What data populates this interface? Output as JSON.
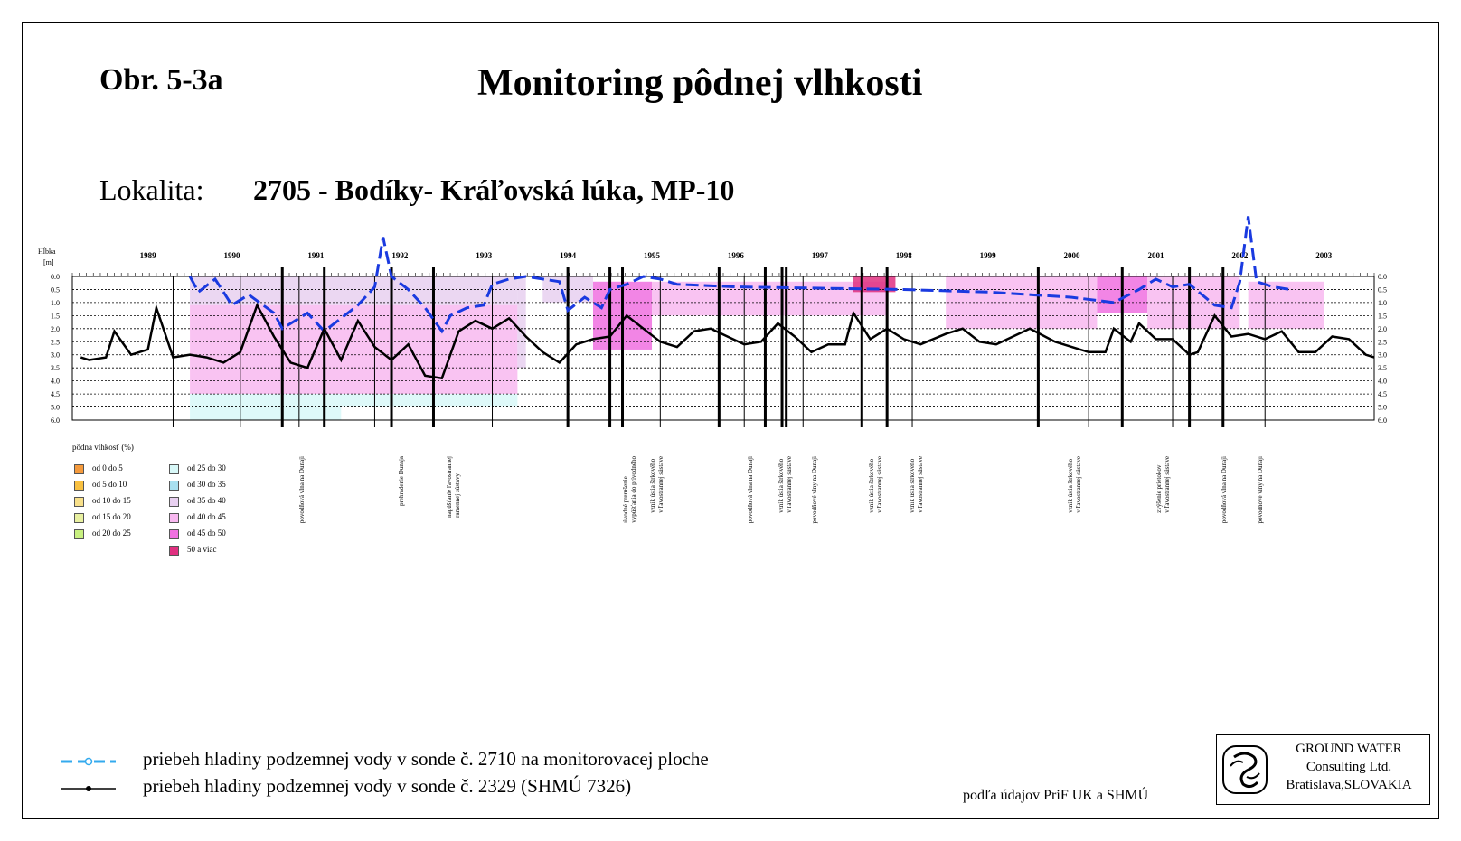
{
  "header": {
    "figure_label": "Obr. 5-3a",
    "title": "Monitoring pôdnej vlhkosti",
    "location_label": "Lokalita:",
    "location_value": "2705 - Bodíky- Kráľovská lúka, MP-10"
  },
  "chart_data": {
    "type": "heatmap",
    "ylabel": "Hĺbka [m]",
    "y_ticks": [
      "0.0",
      "0.5",
      "1.0",
      "1.5",
      "2.0",
      "2.5",
      "3.0",
      "3.5",
      "4.0",
      "4.5",
      "5.0",
      "6.0"
    ],
    "x_ticks": [
      "1989",
      "1990",
      "1991",
      "1992",
      "1993",
      "1994",
      "1995",
      "1996",
      "1997",
      "1998",
      "1999",
      "2000",
      "2001",
      "2002",
      "2003"
    ],
    "ylim_m": [
      0,
      6.0
    ],
    "xlim_year": [
      1988.6,
      2004.1
    ],
    "grid": true,
    "moisture_colors": {
      "0-5": "#f59a3c",
      "5-10": "#f8c040",
      "10-15": "#f8e08a",
      "15-20": "#e8f0a0",
      "20-25": "#c8f080",
      "25-30": "#d8f8f8",
      "30-35": "#a8e0f0",
      "35-40": "#e8d0f0",
      "40-45": "#f8b8f0",
      "45-50": "#f070e0",
      "50+": "#e03080"
    },
    "moisture_bands": [
      {
        "x0": 1990.0,
        "x1": 1993.9,
        "d0": 0.0,
        "d1": 1.1,
        "class": "35-40"
      },
      {
        "x0": 1990.0,
        "x1": 1993.9,
        "d0": 1.1,
        "d1": 4.5,
        "class": "40-45"
      },
      {
        "x0": 1990.0,
        "x1": 1993.9,
        "d0": 4.5,
        "d1": 5.0,
        "class": "25-30"
      },
      {
        "x0": 1990.0,
        "x1": 1991.8,
        "d0": 5.0,
        "d1": 6.0,
        "class": "25-30"
      },
      {
        "x0": 1993.9,
        "x1": 1994.0,
        "d0": 0.0,
        "d1": 3.5,
        "class": "35-40"
      },
      {
        "x0": 1994.2,
        "x1": 1994.8,
        "d0": 0.0,
        "d1": 1.0,
        "class": "35-40"
      },
      {
        "x0": 1994.8,
        "x1": 1995.5,
        "d0": 0.2,
        "d1": 2.8,
        "class": "45-50"
      },
      {
        "x0": 1995.5,
        "x1": 1998.3,
        "d0": 0.2,
        "d1": 1.5,
        "class": "40-45"
      },
      {
        "x0": 1997.9,
        "x1": 1998.4,
        "d0": 0.0,
        "d1": 0.6,
        "class": "50+"
      },
      {
        "x0": 1999.0,
        "x1": 2000.8,
        "d0": 0.0,
        "d1": 2.0,
        "class": "40-45"
      },
      {
        "x0": 2000.8,
        "x1": 2001.4,
        "d0": 0.0,
        "d1": 1.4,
        "class": "45-50"
      },
      {
        "x0": 2001.4,
        "x1": 2002.5,
        "d0": 0.0,
        "d1": 2.0,
        "class": "40-45"
      },
      {
        "x0": 2002.6,
        "x1": 2003.5,
        "d0": 0.2,
        "d1": 2.0,
        "class": "40-45"
      }
    ],
    "series": [
      {
        "name": "priebeh hladiny podzemnej vody v sonde č. 2710 na monitorovacej ploche",
        "color": "#1a3ae0",
        "dash": true,
        "points": [
          [
            1990.0,
            0.0
          ],
          [
            1990.1,
            0.6
          ],
          [
            1990.3,
            0.1
          ],
          [
            1990.5,
            1.1
          ],
          [
            1990.7,
            0.7
          ],
          [
            1991.0,
            1.4
          ],
          [
            1991.1,
            2.0
          ],
          [
            1991.4,
            1.4
          ],
          [
            1991.6,
            2.1
          ],
          [
            1991.8,
            1.6
          ],
          [
            1992.0,
            1.1
          ],
          [
            1992.2,
            0.4
          ],
          [
            1992.3,
            -1.5
          ],
          [
            1992.4,
            0.0
          ],
          [
            1992.6,
            0.5
          ],
          [
            1992.8,
            1.2
          ],
          [
            1993.0,
            2.1
          ],
          [
            1993.1,
            1.5
          ],
          [
            1993.3,
            1.2
          ],
          [
            1993.5,
            1.1
          ],
          [
            1993.6,
            0.3
          ],
          [
            1993.8,
            0.1
          ],
          [
            1994.0,
            0.0
          ],
          [
            1994.2,
            0.1
          ],
          [
            1994.4,
            0.2
          ],
          [
            1994.5,
            1.3
          ],
          [
            1994.7,
            0.8
          ],
          [
            1994.9,
            1.2
          ],
          [
            1995.0,
            0.5
          ],
          [
            1995.2,
            0.3
          ],
          [
            1995.4,
            0.0
          ],
          [
            1995.6,
            0.1
          ],
          [
            1995.8,
            0.3
          ],
          [
            1996.5,
            0.4
          ],
          [
            1997.5,
            0.45
          ],
          [
            1998.5,
            0.5
          ],
          [
            1999.5,
            0.6
          ],
          [
            2000.5,
            0.8
          ],
          [
            2001.0,
            1.0
          ],
          [
            2001.3,
            0.5
          ],
          [
            2001.5,
            0.1
          ],
          [
            2001.7,
            0.4
          ],
          [
            2001.9,
            0.3
          ],
          [
            2002.2,
            1.1
          ],
          [
            2002.4,
            1.2
          ],
          [
            2002.5,
            0.2
          ],
          [
            2002.6,
            -2.3
          ],
          [
            2002.7,
            0.2
          ],
          [
            2002.9,
            0.4
          ],
          [
            2003.1,
            0.5
          ]
        ]
      },
      {
        "name": "priebeh hladiny podzemnej vody v sonde č. 2329 (SHMÚ 7326)",
        "color": "#000000",
        "dash": false,
        "points": [
          [
            1988.7,
            3.1
          ],
          [
            1988.8,
            3.2
          ],
          [
            1989.0,
            3.1
          ],
          [
            1989.1,
            2.1
          ],
          [
            1989.3,
            3.0
          ],
          [
            1989.5,
            2.8
          ],
          [
            1989.6,
            1.2
          ],
          [
            1989.8,
            3.1
          ],
          [
            1990.0,
            3.0
          ],
          [
            1990.2,
            3.1
          ],
          [
            1990.4,
            3.3
          ],
          [
            1990.6,
            2.9
          ],
          [
            1990.8,
            1.1
          ],
          [
            1991.0,
            2.3
          ],
          [
            1991.2,
            3.3
          ],
          [
            1991.4,
            3.5
          ],
          [
            1991.6,
            2.0
          ],
          [
            1991.8,
            3.2
          ],
          [
            1992.0,
            1.7
          ],
          [
            1992.2,
            2.7
          ],
          [
            1992.4,
            3.2
          ],
          [
            1992.6,
            2.6
          ],
          [
            1992.8,
            3.8
          ],
          [
            1993.0,
            3.9
          ],
          [
            1993.2,
            2.1
          ],
          [
            1993.4,
            1.7
          ],
          [
            1993.6,
            2.0
          ],
          [
            1993.8,
            1.6
          ],
          [
            1994.0,
            2.3
          ],
          [
            1994.2,
            2.9
          ],
          [
            1994.4,
            3.3
          ],
          [
            1994.6,
            2.6
          ],
          [
            1994.8,
            2.4
          ],
          [
            1995.0,
            2.3
          ],
          [
            1995.2,
            1.5
          ],
          [
            1995.4,
            2.0
          ],
          [
            1995.6,
            2.5
          ],
          [
            1995.8,
            2.7
          ],
          [
            1996.0,
            2.1
          ],
          [
            1996.2,
            2.0
          ],
          [
            1996.4,
            2.3
          ],
          [
            1996.6,
            2.6
          ],
          [
            1996.8,
            2.5
          ],
          [
            1997.0,
            1.8
          ],
          [
            1997.2,
            2.3
          ],
          [
            1997.4,
            2.9
          ],
          [
            1997.6,
            2.6
          ],
          [
            1997.8,
            2.6
          ],
          [
            1997.9,
            1.4
          ],
          [
            1998.1,
            2.4
          ],
          [
            1998.3,
            2.0
          ],
          [
            1998.5,
            2.4
          ],
          [
            1998.7,
            2.6
          ],
          [
            1999.0,
            2.2
          ],
          [
            1999.2,
            2.0
          ],
          [
            1999.4,
            2.5
          ],
          [
            1999.6,
            2.6
          ],
          [
            1999.8,
            2.3
          ],
          [
            2000.0,
            2.0
          ],
          [
            2000.3,
            2.5
          ],
          [
            2000.5,
            2.7
          ],
          [
            2000.7,
            2.9
          ],
          [
            2000.9,
            2.9
          ],
          [
            2001.0,
            2.0
          ],
          [
            2001.2,
            2.5
          ],
          [
            2001.3,
            1.8
          ],
          [
            2001.5,
            2.4
          ],
          [
            2001.7,
            2.4
          ],
          [
            2001.9,
            3.0
          ],
          [
            2002.0,
            2.9
          ],
          [
            2002.2,
            1.5
          ],
          [
            2002.4,
            2.3
          ],
          [
            2002.6,
            2.2
          ],
          [
            2002.8,
            2.4
          ],
          [
            2003.0,
            2.1
          ],
          [
            2003.2,
            2.9
          ],
          [
            2003.4,
            2.9
          ],
          [
            2003.6,
            2.3
          ],
          [
            2003.8,
            2.4
          ],
          [
            2004.0,
            3.0
          ],
          [
            2004.1,
            3.1
          ]
        ]
      }
    ],
    "event_lines": [
      1991.1,
      1991.6,
      1992.4,
      1992.9,
      1994.5,
      1995.0,
      1995.15,
      1996.3,
      1996.85,
      1997.05,
      1997.1,
      1998.0,
      1998.3,
      2000.1,
      2001.1,
      2001.9,
      2002.3
    ],
    "minor_lines": [
      1989.8,
      1990.6,
      1991.3,
      1992.2,
      1993.6,
      1995.6,
      1996.6,
      1997.3,
      1998.6,
      2000.7,
      2001.7,
      2002.8
    ]
  },
  "legend": {
    "title": "pôdna vlhkosť (%)",
    "left": [
      {
        "label": "od 0 do 5",
        "color": "#f59a3c"
      },
      {
        "label": "od 5 do 10",
        "color": "#f8c040"
      },
      {
        "label": "od 10 do 15",
        "color": "#f8e08a"
      },
      {
        "label": "od 15 do 20",
        "color": "#e8f0a0"
      },
      {
        "label": "od 20 do 25",
        "color": "#c8f080"
      }
    ],
    "right": [
      {
        "label": "od 25 do 30",
        "color": "#d8f8f8"
      },
      {
        "label": "od 30 do 35",
        "color": "#a8e0f0"
      },
      {
        "label": "od 35 do 40",
        "color": "#e8d0f0"
      },
      {
        "label": "od 40 do 45",
        "color": "#f8b8f0"
      },
      {
        "label": "od 45 do 50",
        "color": "#f070e0"
      },
      {
        "label": "50 a viac",
        "color": "#e03080"
      }
    ]
  },
  "annotations": [
    {
      "text": "povodňová vlna na Dunaji"
    },
    {
      "text": "prehradenie Dunaja"
    },
    {
      "text": "napúšťanie ľavostrannej\nramennej sústavy"
    },
    {
      "text": "úvodné prerušenie\nvypúšťania do prívodného"
    },
    {
      "text": "vznik ústia štrkového\nv ľavostrannej sústave"
    },
    {
      "text": "povodňová vlna na Dunaji"
    },
    {
      "text": "vznik ústia štrkového\nv ľavostrannej sústave"
    },
    {
      "text": "povodňové vlny na Dunaji"
    },
    {
      "text": "vznik ústia štrkového\nv ľavostrannej sústave"
    },
    {
      "text": "vznik ústia štrkového\nv ľavostrannej sústave"
    },
    {
      "text": "vznik ústia štrkového\nv ľavostrannej sústave"
    },
    {
      "text": "zvýšenie prietokov\nv ľavostrannej sústave"
    },
    {
      "text": "povodňová vlna na Dunaji"
    },
    {
      "text": "povodňové vlny na Dunaji"
    }
  ],
  "line_legend": {
    "blue": "priebeh hladiny podzemnej vody v sonde č. 2710 na monitorovacej ploche",
    "black": "priebeh hladiny podzemnej vody v sonde č. 2329 (SHMÚ 7326)"
  },
  "source": "podľa údajov PriF UK a SHMÚ",
  "logo": "GROUND WATER\nConsulting Ltd.\nBratislava,SLOVAKIA"
}
